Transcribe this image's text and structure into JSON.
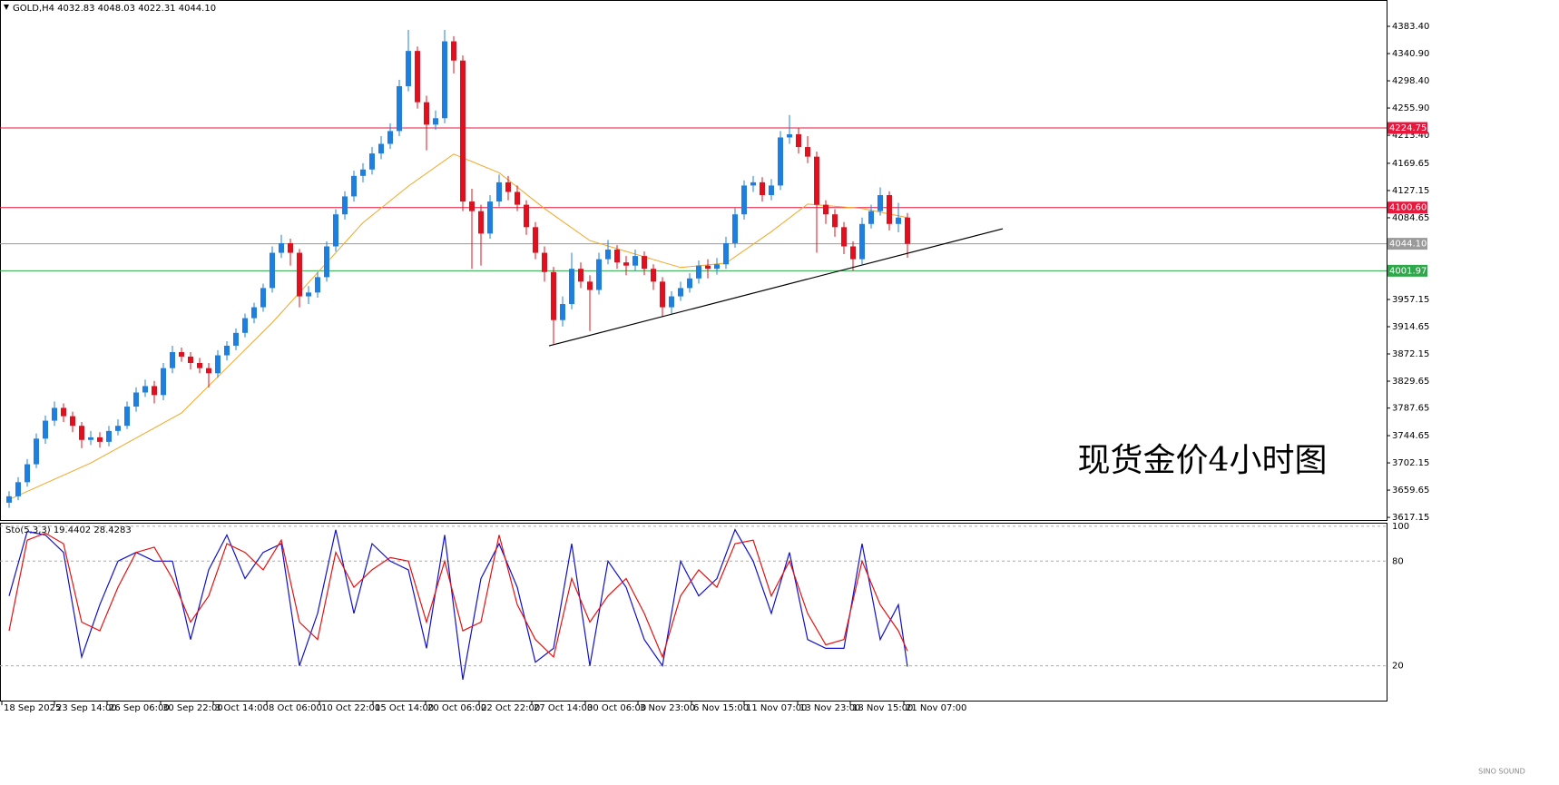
{
  "chart_data": {
    "type": "candlestick",
    "title": "GOLD,H4 4032.83 4048.03 4022.31 4044.10",
    "annotation": "现货金价4小时图",
    "watermark": "SINO SOUND",
    "up_color": "#1e7fe0",
    "down_color": "#e0101e",
    "xlim": [
      -1,
      151.8
    ],
    "ylim": [
      3613,
      4424.5
    ],
    "xticks": [
      {
        "value": -0.8,
        "label": "18 Sep 2025"
      },
      {
        "value": 5,
        "label": "23 Sep 14:00"
      },
      {
        "value": 10.8,
        "label": "26 Sep 06:00"
      },
      {
        "value": 16.7,
        "label": "30 Sep 22:00"
      },
      {
        "value": 22.5,
        "label": "3 Oct 14:00"
      },
      {
        "value": 28.4,
        "label": "8 Oct 06:00"
      },
      {
        "value": 34.2,
        "label": "10 Oct 22:00"
      },
      {
        "value": 40.1,
        "label": "15 Oct 14:00"
      },
      {
        "value": 45.9,
        "label": "20 Oct 06:00"
      },
      {
        "value": 51.8,
        "label": "22 Oct 22:00"
      },
      {
        "value": 57.6,
        "label": "27 Oct 14:00"
      },
      {
        "value": 63.5,
        "label": "30 Oct 06:00"
      },
      {
        "value": 69.3,
        "label": "3 Nov 23:00"
      },
      {
        "value": 75.2,
        "label": "6 Nov 15:00"
      },
      {
        "value": 81,
        "label": "11 Nov 07:00"
      },
      {
        "value": 86.9,
        "label": "13 Nov 23:00"
      },
      {
        "value": 92.7,
        "label": "18 Nov 15:00"
      },
      {
        "value": 98.6,
        "label": "21 Nov 07:00"
      }
    ],
    "yticks": [
      {
        "value": 4383.4,
        "label": "4383.40"
      },
      {
        "value": 4340.9,
        "label": "4340.90"
      },
      {
        "value": 4298.4,
        "label": "4298.40"
      },
      {
        "value": 4255.9,
        "label": "4255.90"
      },
      {
        "value": 4213.4,
        "label": "4213.40"
      },
      4169.65,
      4127.15,
      4084.65,
      3957.15,
      3914.65,
      3872.15,
      3829.65,
      3787.65,
      3744.65,
      3702.15,
      3659.65,
      3617.15
    ],
    "open": [
      3640,
      3650,
      3672,
      3700,
      3740,
      3768,
      3788,
      3775,
      3760,
      3738,
      3742,
      3735,
      3752,
      3760,
      3790,
      3812,
      3822,
      3808,
      3850,
      3875,
      3868,
      3858,
      3850,
      3842,
      3870,
      3885,
      3905,
      3928,
      3945,
      3975,
      4030,
      4045,
      4030,
      3962,
      3968,
      3992,
      4040,
      4090,
      4118,
      4150,
      4160,
      4185,
      4200,
      4220,
      4290,
      4345,
      4265,
      4230,
      4240,
      4360,
      4330,
      4110,
      4095,
      4060,
      4110,
      4140,
      4125,
      4105,
      4070,
      4030,
      4000,
      3925,
      3950,
      4005,
      3985,
      3972,
      4020,
      4035,
      4015,
      4010,
      4025,
      4005,
      3985,
      3945,
      3962,
      3975,
      3990,
      4010,
      4005,
      4012,
      4045,
      4090,
      4135,
      4140,
      4120,
      4135,
      4210,
      4215,
      4195,
      4180,
      4105,
      4090,
      4070,
      4040,
      4020,
      4075,
      4095,
      4120,
      4075,
      4085
    ],
    "high": [
      3658,
      3680,
      3708,
      3748,
      3776,
      3798,
      3795,
      3782,
      3766,
      3752,
      3750,
      3760,
      3770,
      3798,
      3820,
      3832,
      3830,
      3858,
      3885,
      3882,
      3875,
      3866,
      3858,
      3878,
      3892,
      3912,
      3935,
      3952,
      3982,
      4040,
      4058,
      4052,
      4036,
      3978,
      4000,
      4048,
      4098,
      4126,
      4158,
      4170,
      4195,
      4212,
      4232,
      4300,
      4378,
      4352,
      4275,
      4252,
      4378,
      4368,
      4338,
      4130,
      4105,
      4120,
      4152,
      4150,
      4135,
      4112,
      4078,
      4040,
      4008,
      3962,
      4030,
      4015,
      3995,
      4030,
      4050,
      4042,
      4025,
      4035,
      4032,
      4012,
      3992,
      3970,
      3985,
      3998,
      4018,
      4020,
      4022,
      4055,
      4100,
      4143,
      4150,
      4148,
      4145,
      4220,
      4245,
      4225,
      4212,
      4188,
      4112,
      4098,
      4078,
      4048,
      4085,
      4105,
      4132,
      4126,
      4108,
      4092
    ],
    "low": [
      3632,
      3644,
      3665,
      3694,
      3732,
      3760,
      3766,
      3750,
      3725,
      3730,
      3726,
      3728,
      3745,
      3755,
      3782,
      3805,
      3795,
      3800,
      3842,
      3860,
      3848,
      3842,
      3820,
      3835,
      3862,
      3878,
      3898,
      3920,
      3938,
      3968,
      4022,
      4010,
      3945,
      3950,
      3960,
      3985,
      4032,
      4082,
      4110,
      4140,
      4152,
      4176,
      4192,
      4212,
      4282,
      4255,
      4190,
      4222,
      4232,
      4310,
      4095,
      4005,
      4010,
      4052,
      4102,
      4112,
      4095,
      4058,
      4020,
      3985,
      3888,
      3915,
      3942,
      3975,
      3908,
      3965,
      4012,
      4005,
      3995,
      4002,
      3995,
      3972,
      3930,
      3935,
      3955,
      3968,
      3982,
      3990,
      3996,
      4005,
      4038,
      4082,
      4125,
      4110,
      4112,
      4128,
      4200,
      4185,
      4170,
      4030,
      4075,
      4055,
      4028,
      4002,
      4012,
      4068,
      4088,
      4065,
      4062,
      4022.31
    ],
    "close": [
      3650,
      3672,
      3700,
      3740,
      3768,
      3788,
      3775,
      3760,
      3738,
      3742,
      3735,
      3752,
      3760,
      3790,
      3812,
      3822,
      3808,
      3850,
      3875,
      3868,
      3858,
      3850,
      3842,
      3870,
      3885,
      3905,
      3928,
      3945,
      3975,
      4030,
      4045,
      4030,
      3962,
      3968,
      3992,
      4040,
      4090,
      4118,
      4150,
      4160,
      4185,
      4200,
      4220,
      4290,
      4345,
      4265,
      4230,
      4240,
      4360,
      4330,
      4110,
      4095,
      4060,
      4110,
      4140,
      4125,
      4105,
      4070,
      4030,
      4000,
      3925,
      3950,
      4005,
      3985,
      3972,
      4020,
      4035,
      4015,
      4010,
      4025,
      4005,
      3985,
      3945,
      3962,
      3975,
      3990,
      4010,
      4005,
      4012,
      4045,
      4090,
      4135,
      4140,
      4120,
      4135,
      4210,
      4215,
      4195,
      4180,
      4105,
      4090,
      4070,
      4040,
      4020,
      4075,
      4095,
      4120,
      4075,
      4085,
      4044.1
    ],
    "ma": {
      "color": "#f5a623",
      "x": [
        0,
        9,
        19,
        29,
        34,
        39,
        44,
        49,
        54,
        59,
        64,
        69,
        74,
        79,
        84,
        88,
        94,
        99
      ],
      "values": [
        3645,
        3702,
        3780,
        3921,
        3999,
        4077,
        4134,
        4184,
        4155,
        4099,
        4049,
        4028,
        4007,
        4014,
        4063,
        4106,
        4099,
        4085
      ]
    },
    "levels": [
      {
        "value": 4224.75,
        "label": "4224.75",
        "color": "#e8173c"
      },
      {
        "value": 4100.6,
        "label": "4100.60",
        "color": "#e8173c"
      },
      {
        "value": 4044.1,
        "label": "4044.10",
        "color": "#9a9a9a"
      },
      {
        "value": 4001.97,
        "label": "4001.97",
        "color": "#2ea84a"
      }
    ],
    "trendline": {
      "color": "#000000",
      "x": [
        59.5,
        109.5
      ],
      "y": [
        3884.8,
        4067.5
      ]
    },
    "stoch": {
      "label": "Sto(5,3,3) 19.4402 28.4283",
      "ylim": [
        0,
        102
      ],
      "yticks": [
        100,
        80,
        20
      ],
      "x": [
        0,
        2,
        4,
        6,
        8,
        10,
        12,
        14,
        16,
        18,
        20,
        22,
        24,
        26,
        28,
        30,
        32,
        34,
        36,
        38,
        40,
        42,
        44,
        46,
        48,
        50,
        52,
        54,
        56,
        58,
        60,
        62,
        64,
        66,
        68,
        70,
        72,
        74,
        76,
        78,
        80,
        82,
        84,
        86,
        88,
        90,
        92,
        94,
        96,
        98,
        99
      ],
      "series": [
        {
          "color": "#1010d0",
          "values": [
            60,
            97,
            95,
            85,
            25,
            55,
            80,
            85,
            80,
            80,
            35,
            75,
            95,
            70,
            85,
            90,
            20,
            50,
            98,
            50,
            90,
            80,
            75,
            30,
            95,
            12,
            70,
            90,
            65,
            22,
            30,
            90,
            20,
            80,
            65,
            35,
            20,
            80,
            60,
            70,
            98,
            80,
            50,
            85,
            35,
            30,
            30,
            90,
            35,
            55,
            19.4402
          ]
        },
        {
          "color": "#e81010",
          "values": [
            40,
            92,
            96,
            90,
            45,
            40,
            65,
            85,
            88,
            70,
            45,
            60,
            90,
            85,
            75,
            92,
            45,
            35,
            85,
            65,
            75,
            82,
            80,
            45,
            80,
            40,
            45,
            95,
            55,
            35,
            25,
            70,
            45,
            60,
            70,
            50,
            25,
            60,
            75,
            65,
            90,
            92,
            60,
            80,
            50,
            32,
            35,
            80,
            55,
            40,
            28.4283
          ]
        }
      ]
    }
  }
}
